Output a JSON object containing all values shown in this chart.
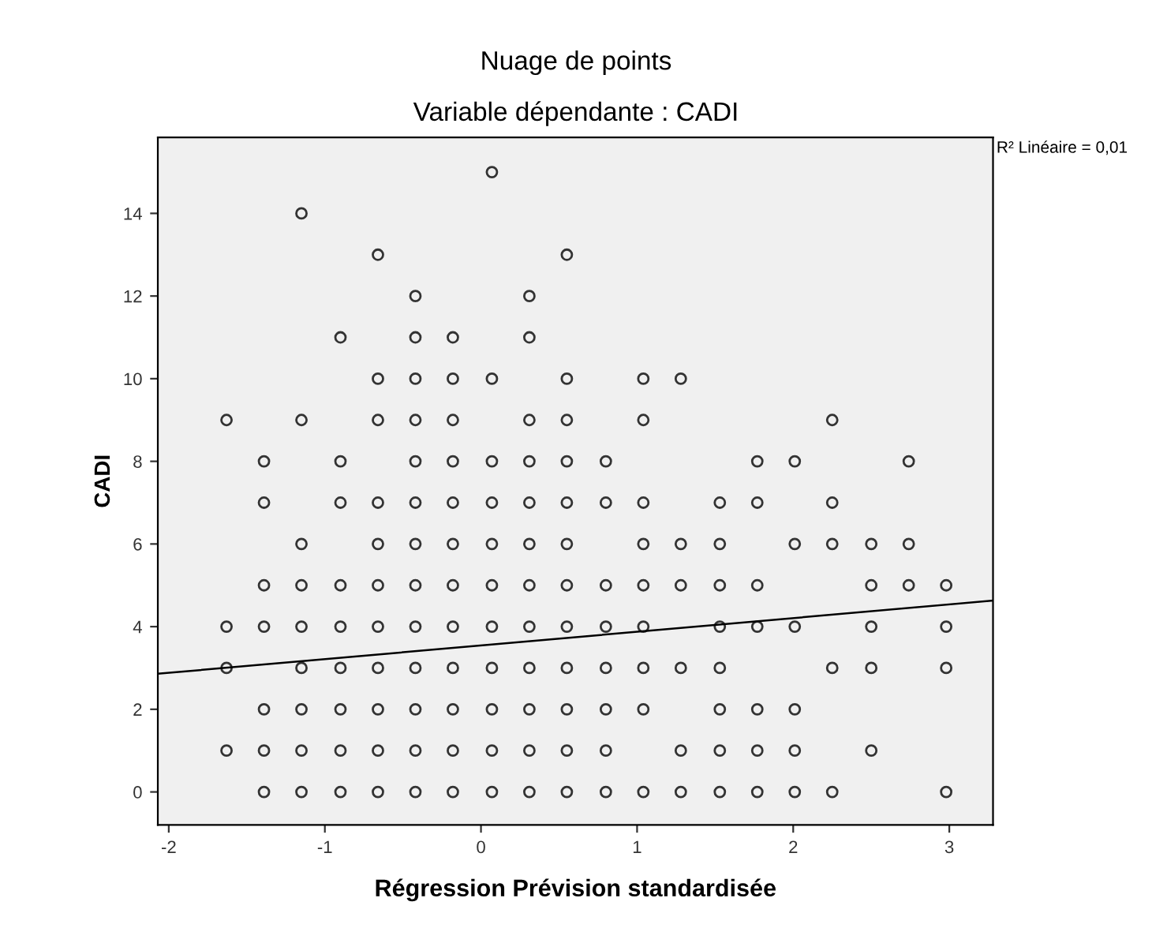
{
  "chart_data": {
    "type": "scatter",
    "title": "Nuage de points",
    "subtitle": "Variable dépendante : CADI",
    "xlabel": "Régression Prévision standardisée",
    "ylabel": "CADI",
    "annotations": [
      "R² Linéaire = 0,01"
    ],
    "xlim": [
      -2.07,
      3.28
    ],
    "ylim": [
      -0.8,
      15.84
    ],
    "xticks": [
      -2,
      -1,
      0,
      1,
      2,
      3
    ],
    "yticks": [
      0,
      2,
      4,
      6,
      8,
      10,
      12,
      14
    ],
    "grid": false,
    "legend": false,
    "marker": "circle",
    "series": [
      {
        "color": "#333333",
        "x": [
          -1.63,
          -1.63,
          -1.63,
          -1.63,
          -1.39,
          -1.39,
          -1.39,
          -1.39,
          -1.39,
          -1.39,
          -1.39,
          -1.15,
          -1.15,
          -1.15,
          -1.15,
          -1.15,
          -1.15,
          -1.15,
          -1.15,
          -1.15,
          -0.9,
          -0.9,
          -0.9,
          -0.9,
          -0.9,
          -0.9,
          -0.9,
          -0.9,
          -0.9,
          -0.66,
          -0.66,
          -0.66,
          -0.66,
          -0.66,
          -0.66,
          -0.66,
          -0.66,
          -0.66,
          -0.66,
          -0.66,
          -0.42,
          -0.42,
          -0.42,
          -0.42,
          -0.42,
          -0.42,
          -0.42,
          -0.42,
          -0.42,
          -0.42,
          -0.42,
          -0.42,
          -0.42,
          -0.18,
          -0.18,
          -0.18,
          -0.18,
          -0.18,
          -0.18,
          -0.18,
          -0.18,
          -0.18,
          -0.18,
          -0.18,
          -0.18,
          0.07,
          0.07,
          0.07,
          0.07,
          0.07,
          0.07,
          0.07,
          0.07,
          0.07,
          0.07,
          0.07,
          0.31,
          0.31,
          0.31,
          0.31,
          0.31,
          0.31,
          0.31,
          0.31,
          0.31,
          0.31,
          0.31,
          0.31,
          0.55,
          0.55,
          0.55,
          0.55,
          0.55,
          0.55,
          0.55,
          0.55,
          0.55,
          0.55,
          0.55,
          0.55,
          0.8,
          0.8,
          0.8,
          0.8,
          0.8,
          0.8,
          0.8,
          0.8,
          1.04,
          1.04,
          1.04,
          1.04,
          1.04,
          1.04,
          1.04,
          1.04,
          1.04,
          1.28,
          1.28,
          1.28,
          1.28,
          1.28,
          1.28,
          1.53,
          1.53,
          1.53,
          1.53,
          1.53,
          1.53,
          1.53,
          1.53,
          1.77,
          1.77,
          1.77,
          1.77,
          1.77,
          1.77,
          1.77,
          2.01,
          2.01,
          2.01,
          2.01,
          2.01,
          2.01,
          2.25,
          2.25,
          2.25,
          2.25,
          2.25,
          2.5,
          2.5,
          2.5,
          2.5,
          2.5,
          2.74,
          2.74,
          2.74,
          2.98,
          2.98,
          2.98,
          2.98
        ],
        "values": [
          9,
          4,
          3,
          1,
          8,
          7,
          5,
          4,
          2,
          1,
          0,
          14,
          9,
          6,
          5,
          4,
          3,
          2,
          1,
          0,
          11,
          8,
          7,
          5,
          4,
          3,
          2,
          1,
          0,
          13,
          10,
          9,
          7,
          6,
          5,
          4,
          3,
          2,
          1,
          0,
          12,
          11,
          10,
          9,
          8,
          7,
          6,
          5,
          4,
          3,
          2,
          1,
          0,
          11,
          10,
          9,
          8,
          7,
          6,
          5,
          4,
          3,
          2,
          1,
          0,
          15,
          10,
          8,
          7,
          6,
          5,
          4,
          3,
          2,
          1,
          0,
          12,
          11,
          9,
          8,
          7,
          6,
          5,
          4,
          3,
          2,
          1,
          0,
          13,
          10,
          9,
          8,
          7,
          6,
          5,
          4,
          3,
          2,
          1,
          0,
          8,
          7,
          5,
          4,
          3,
          2,
          1,
          0,
          10,
          9,
          7,
          6,
          5,
          4,
          3,
          2,
          0,
          10,
          6,
          5,
          3,
          1,
          0,
          7,
          6,
          5,
          4,
          3,
          2,
          1,
          0,
          8,
          7,
          5,
          4,
          2,
          1,
          0,
          8,
          6,
          4,
          2,
          1,
          0,
          9,
          7,
          6,
          3,
          0,
          6,
          5,
          4,
          3,
          1,
          8,
          6,
          5,
          5,
          4,
          3,
          0
        ]
      },
      {
        "type": "line",
        "color": "#000000",
        "marker": "none",
        "x": [
          -2.07,
          3.28
        ],
        "values": [
          2.86,
          4.63
        ]
      }
    ]
  }
}
